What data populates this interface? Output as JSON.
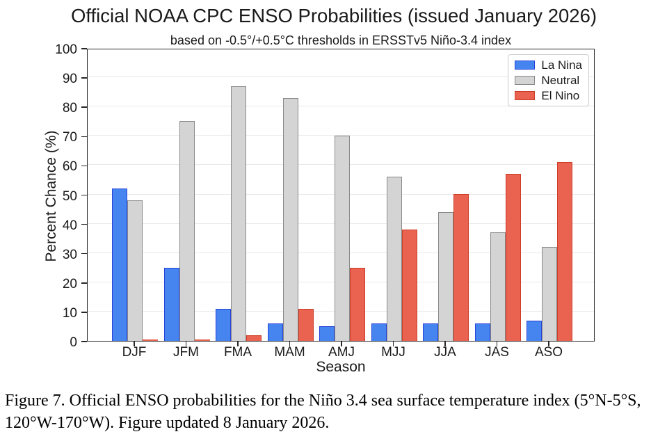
{
  "title": "Official NOAA CPC ENSO Probabilities (issued January 2026)",
  "subtitle": "based on -0.5°/+0.5°C thresholds in ERSSTv5 Niño-3.4 index",
  "chart_data": {
    "type": "bar",
    "categories": [
      "DJF",
      "JFM",
      "FMA",
      "MAM",
      "AMJ",
      "MJJ",
      "JJA",
      "JAS",
      "ASO"
    ],
    "series": [
      {
        "name": "La Nina",
        "color": "#4685F0",
        "edge_color": "#2742D9",
        "values": [
          52,
          25,
          11,
          6,
          5,
          6,
          6,
          6,
          7
        ]
      },
      {
        "name": "Neutral",
        "color": "#D4D4D4",
        "edge_color": "#8A8A8A",
        "values": [
          48,
          75,
          87,
          83,
          70,
          56,
          44,
          37,
          32
        ]
      },
      {
        "name": "El Nino",
        "color": "#E96350",
        "edge_color": "#CC3D28",
        "values": [
          0,
          0,
          2,
          11,
          25,
          38,
          50,
          57,
          61
        ]
      }
    ],
    "xlabel": "Season",
    "ylabel": "Percent Chance (%)",
    "ylim": [
      0,
      100
    ],
    "yticks": [
      0,
      10,
      20,
      30,
      40,
      50,
      60,
      70,
      80,
      90,
      100
    ],
    "grid": true,
    "legend_position": "upper right"
  },
  "caption_line1": "Figure 7. Official ENSO probabilities for the Niño 3.4 sea surface temperature index (5°N-5°S,",
  "caption_line2": "120°W-170°W). Figure updated 8 January 2026."
}
